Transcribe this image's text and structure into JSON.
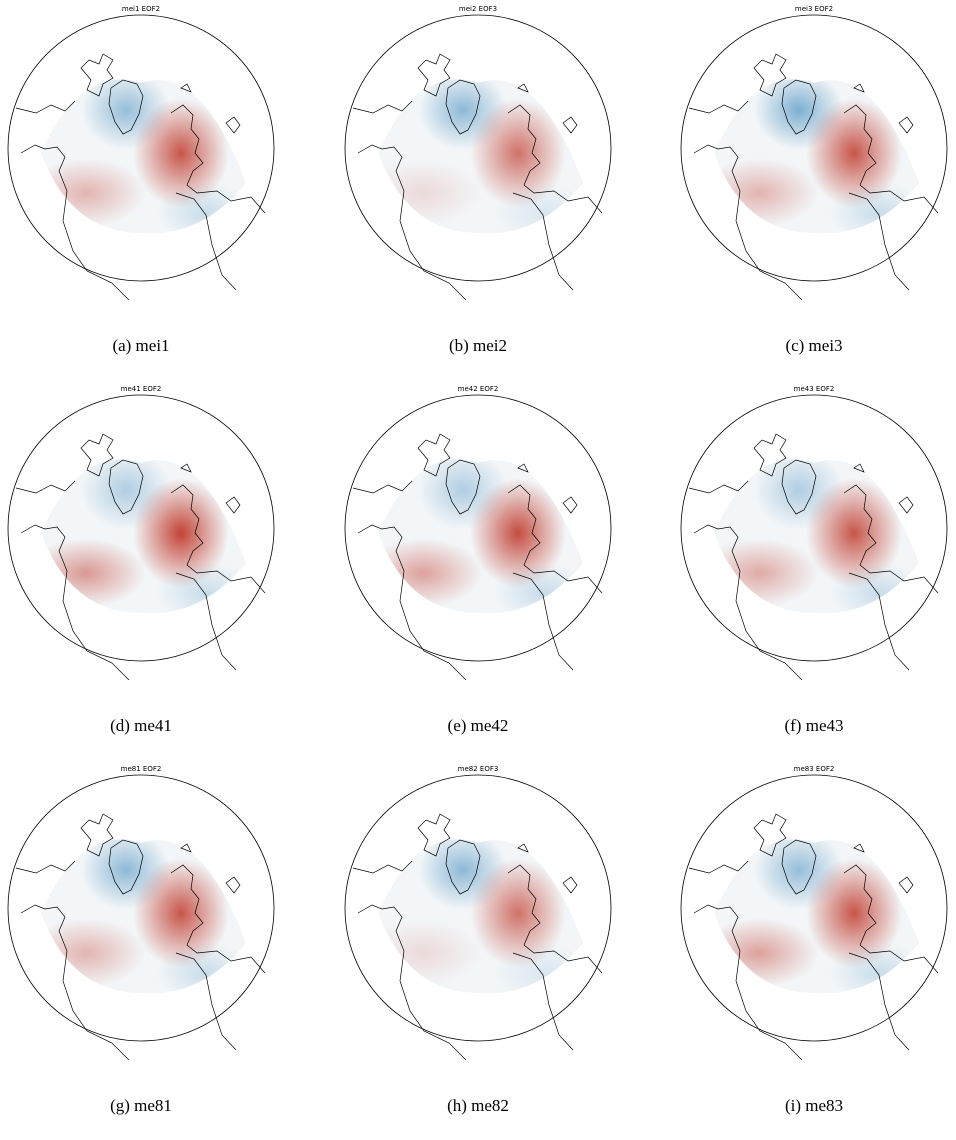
{
  "figure": {
    "panels": [
      {
        "caption": "(a) mei1",
        "title": "mei1 EOF2",
        "anomaly": {
          "greenland_blue": 0.55,
          "europe_red": 0.85,
          "atlantic_red": 0.35,
          "south_blue": 0.25
        }
      },
      {
        "caption": "(b) mei2",
        "title": "mei2 EOF3",
        "anomaly": {
          "greenland_blue": 0.6,
          "europe_red": 0.7,
          "atlantic_red": 0.15,
          "south_blue": 0.15
        }
      },
      {
        "caption": "(c) mei3",
        "title": "mei3 EOF2",
        "anomaly": {
          "greenland_blue": 0.7,
          "europe_red": 0.85,
          "atlantic_red": 0.35,
          "south_blue": 0.25
        }
      },
      {
        "caption": "(d) me41",
        "title": "me41 EOF2",
        "anomaly": {
          "greenland_blue": 0.4,
          "europe_red": 0.95,
          "atlantic_red": 0.5,
          "south_blue": 0.25
        }
      },
      {
        "caption": "(e) me42",
        "title": "me42 EOF2",
        "anomaly": {
          "greenland_blue": 0.4,
          "europe_red": 0.9,
          "atlantic_red": 0.45,
          "south_blue": 0.25
        }
      },
      {
        "caption": "(f) me43",
        "title": "me43 EOF2",
        "anomaly": {
          "greenland_blue": 0.4,
          "europe_red": 0.85,
          "atlantic_red": 0.4,
          "south_blue": 0.25
        }
      },
      {
        "caption": "(g) me81",
        "title": "me81 EOF2",
        "anomaly": {
          "greenland_blue": 0.6,
          "europe_red": 0.85,
          "atlantic_red": 0.35,
          "south_blue": 0.25
        }
      },
      {
        "caption": "(h) me82",
        "title": "me82 EOF3",
        "anomaly": {
          "greenland_blue": 0.6,
          "europe_red": 0.7,
          "atlantic_red": 0.15,
          "south_blue": 0.15
        }
      },
      {
        "caption": "(i) me83",
        "title": "me83 EOF2",
        "anomaly": {
          "greenland_blue": 0.55,
          "europe_red": 0.85,
          "atlantic_red": 0.45,
          "south_blue": 0.25
        }
      }
    ],
    "colors": {
      "positive": "#c0392b",
      "negative": "#4a90c0",
      "coast": "#000000"
    }
  }
}
